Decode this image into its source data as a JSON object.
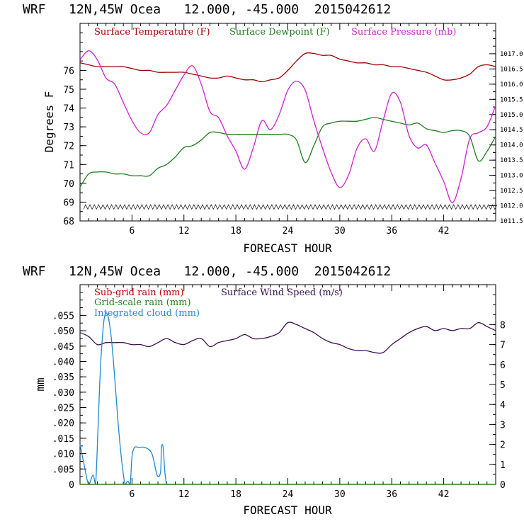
{
  "colors": {
    "temperature": "#a00000",
    "dewpoint": "#1e7e1e",
    "pressure": "#d020d0",
    "wind": "#3a1050",
    "cloud": "#1e88d0",
    "subgrid_rain": "#b00000",
    "gridscale_rain": "#1e7e1e"
  },
  "chart_data": [
    {
      "type": "line",
      "header": "WRF   12N,45W Ocea   12.000, -45.000  2015042612",
      "xlabel": "FORECAST HOUR",
      "ylabel": "Degrees F",
      "xlim": [
        0,
        48
      ],
      "xticks": [
        "6",
        "12",
        "18",
        "24",
        "30",
        "36",
        "42"
      ],
      "ylim": [
        68,
        78.5
      ],
      "yticks": [
        "68",
        "69",
        "70",
        "71",
        "72",
        "73",
        "74",
        "75",
        "76"
      ],
      "y2lim": [
        1011.5,
        1018.0
      ],
      "y2ticks": [
        "1011.5",
        "1012.0",
        "1012.5",
        "1013.0",
        "1013.5",
        "1014.0",
        "1014.5",
        "1015.0",
        "1015.5",
        "1016.0",
        "1016.5",
        "1017.0"
      ],
      "legend": [
        "Surface Temperature (F)",
        "Surface Dewpoint (F)",
        "Surface Pressure (mb)"
      ],
      "series": [
        {
          "name": "Surface Temperature (F)",
          "axis": "left",
          "x": [
            0,
            1,
            2,
            3,
            4,
            5,
            6,
            7,
            8,
            9,
            10,
            11,
            12,
            13,
            14,
            15,
            16,
            17,
            18,
            19,
            20,
            21,
            22,
            23,
            24,
            25,
            26,
            27,
            28,
            29,
            30,
            31,
            32,
            33,
            34,
            35,
            36,
            37,
            38,
            39,
            40,
            41,
            42,
            43,
            44,
            45,
            46,
            47,
            48
          ],
          "values": [
            76.4,
            76.3,
            76.2,
            76.2,
            76.2,
            76.2,
            76.1,
            76.0,
            76.0,
            75.9,
            75.9,
            75.9,
            75.9,
            75.8,
            75.7,
            75.6,
            75.6,
            75.7,
            75.6,
            75.5,
            75.5,
            75.4,
            75.5,
            75.6,
            76.0,
            76.5,
            76.9,
            76.9,
            76.8,
            76.8,
            76.6,
            76.5,
            76.4,
            76.4,
            76.3,
            76.3,
            76.2,
            76.2,
            76.1,
            76.0,
            75.9,
            75.7,
            75.5,
            75.5,
            75.6,
            75.8,
            76.2,
            76.3,
            76.2
          ]
        },
        {
          "name": "Surface Dewpoint (F)",
          "axis": "left",
          "x": [
            0,
            1,
            2,
            3,
            4,
            5,
            6,
            7,
            8,
            9,
            10,
            11,
            12,
            13,
            14,
            15,
            16,
            17,
            18,
            19,
            20,
            21,
            22,
            23,
            24,
            25,
            26,
            27,
            28,
            29,
            30,
            31,
            32,
            33,
            34,
            35,
            36,
            37,
            38,
            39,
            40,
            41,
            42,
            43,
            44,
            45,
            46,
            47,
            48
          ],
          "values": [
            69.8,
            70.5,
            70.6,
            70.6,
            70.5,
            70.5,
            70.4,
            70.4,
            70.4,
            70.8,
            71.0,
            71.4,
            71.9,
            72.0,
            72.3,
            72.7,
            72.7,
            72.6,
            72.6,
            72.6,
            72.6,
            72.6,
            72.6,
            72.6,
            72.6,
            72.3,
            71.1,
            72.0,
            73.0,
            73.2,
            73.3,
            73.3,
            73.3,
            73.4,
            73.5,
            73.4,
            73.3,
            73.2,
            73.1,
            73.2,
            72.9,
            72.8,
            72.7,
            72.8,
            72.8,
            72.5,
            71.2,
            71.7,
            72.5
          ]
        },
        {
          "name": "Surface Pressure (mb)",
          "axis": "right",
          "x": [
            0,
            1,
            2,
            3,
            4,
            5,
            6,
            7,
            8,
            9,
            10,
            11,
            12,
            13,
            14,
            15,
            16,
            17,
            18,
            19,
            20,
            21,
            22,
            23,
            24,
            25,
            26,
            27,
            28,
            29,
            30,
            31,
            32,
            33,
            34,
            35,
            36,
            37,
            38,
            39,
            40,
            41,
            42,
            43,
            44,
            45,
            46,
            47,
            48
          ],
          "values": [
            1016.8,
            1017.1,
            1016.8,
            1016.2,
            1016.0,
            1015.4,
            1014.8,
            1014.4,
            1014.4,
            1015.0,
            1015.3,
            1015.8,
            1016.3,
            1016.6,
            1016.0,
            1015.1,
            1014.9,
            1014.3,
            1013.8,
            1013.2,
            1013.9,
            1014.8,
            1014.5,
            1015.0,
            1015.8,
            1016.1,
            1015.8,
            1014.8,
            1013.9,
            1013.1,
            1012.6,
            1013.0,
            1013.9,
            1014.2,
            1013.8,
            1014.8,
            1015.7,
            1015.4,
            1014.3,
            1013.9,
            1014.0,
            1013.4,
            1012.8,
            1012.1,
            1012.9,
            1014.2,
            1014.4,
            1014.6,
            1015.3
          ]
        }
      ]
    },
    {
      "type": "line",
      "header": "WRF   12N,45W Ocea   12.000, -45.000  2015042612",
      "xlabel": "FORECAST HOUR",
      "ylabel": "mm",
      "xlim": [
        0,
        48
      ],
      "xticks": [
        "6",
        "12",
        "18",
        "24",
        "30",
        "36",
        "42"
      ],
      "ylim": [
        0,
        0.065
      ],
      "yticks": [
        "0",
        ".005",
        ".010",
        ".015",
        ".020",
        ".025",
        ".030",
        ".035",
        ".040",
        ".045",
        ".050",
        ".055"
      ],
      "y2lim": [
        0,
        10
      ],
      "y2ticks": [
        "0",
        "1",
        "2",
        "3",
        "4",
        "5",
        "6",
        "7",
        "8"
      ],
      "legend": [
        "Sub-grid rain (mm)",
        "Surface Wind Speed (m/s)",
        "Grid-scale rain (mm)",
        "Integrated cloud (mm)"
      ],
      "series": [
        {
          "name": "Surface Wind Speed (m/s)",
          "axis": "right",
          "x": [
            0,
            1,
            2,
            3,
            4,
            5,
            6,
            7,
            8,
            9,
            10,
            11,
            12,
            13,
            14,
            15,
            16,
            17,
            18,
            19,
            20,
            21,
            22,
            23,
            24,
            25,
            26,
            27,
            28,
            29,
            30,
            31,
            32,
            33,
            34,
            35,
            36,
            37,
            38,
            39,
            40,
            41,
            42,
            43,
            44,
            45,
            46,
            47,
            48
          ],
          "values": [
            7.6,
            7.4,
            7.0,
            7.1,
            7.1,
            7.1,
            7.0,
            7.0,
            6.9,
            7.1,
            7.3,
            7.1,
            7.0,
            7.2,
            7.3,
            6.9,
            7.1,
            7.2,
            7.3,
            7.5,
            7.3,
            7.3,
            7.4,
            7.6,
            8.1,
            8.0,
            7.8,
            7.6,
            7.3,
            7.1,
            7.0,
            6.8,
            6.7,
            6.7,
            6.6,
            6.6,
            7.0,
            7.3,
            7.6,
            7.8,
            7.9,
            7.7,
            7.8,
            7.7,
            7.8,
            7.8,
            8.1,
            7.9,
            7.7
          ]
        },
        {
          "name": "Integrated cloud (mm)",
          "axis": "left",
          "x": [
            0,
            0.5,
            1.0,
            1.5,
            1.8,
            2.1,
            2.4,
            2.8,
            3.2,
            3.6,
            4.0,
            4.4,
            4.8,
            5.2,
            5.5,
            5.8,
            6.0,
            6.3,
            6.8,
            7.5,
            8.3,
            8.9,
            9.3,
            9.4,
            9.6,
            9.8,
            10.0,
            10.3
          ],
          "values": [
            0.013,
            0.006,
            0,
            0.003,
            0,
            0.02,
            0.04,
            0.054,
            0.055,
            0.048,
            0.035,
            0.02,
            0.008,
            0,
            0.001,
            0,
            0.009,
            0.012,
            0.012,
            0.012,
            0.01,
            0.003,
            0.004,
            0.012,
            0.012,
            0.004,
            0,
            0
          ]
        },
        {
          "name": "Sub-grid rain (mm)",
          "axis": "left",
          "x": [
            0,
            48
          ],
          "values": [
            0,
            0
          ]
        },
        {
          "name": "Grid-scale rain (mm)",
          "axis": "left",
          "x": [
            0,
            48
          ],
          "values": [
            0,
            0
          ]
        }
      ]
    }
  ]
}
